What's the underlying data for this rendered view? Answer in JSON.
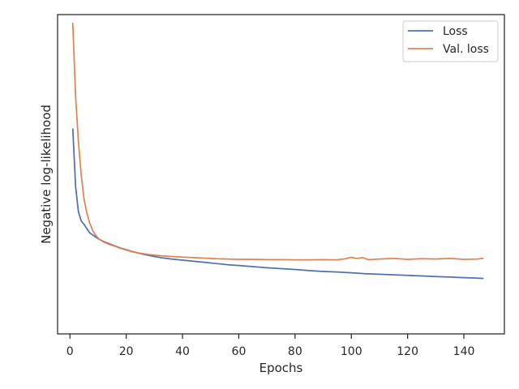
{
  "chart_data": {
    "type": "line",
    "title": "",
    "xlabel": "Epochs",
    "ylabel": "Negative log-likelihood",
    "xlim": [
      -4.4,
      154.4
    ],
    "ylim": [
      0.0,
      1.0
    ],
    "xticks": [
      0,
      20,
      40,
      60,
      80,
      100,
      120,
      140
    ],
    "yticks": [],
    "grid": false,
    "legend_position": "top-right",
    "series": [
      {
        "name": "Loss",
        "color": "#4c72b0",
        "x": [
          1,
          2,
          3,
          4,
          5,
          6,
          7,
          8,
          9,
          10,
          12,
          14,
          16,
          18,
          20,
          22,
          24,
          26,
          28,
          30,
          33,
          36,
          40,
          44,
          48,
          52,
          56,
          60,
          65,
          70,
          75,
          80,
          85,
          90,
          95,
          100,
          105,
          110,
          115,
          120,
          125,
          130,
          135,
          140,
          145,
          147
        ],
        "y": [
          0.625,
          0.42,
          0.33,
          0.297,
          0.285,
          0.27,
          0.255,
          0.248,
          0.241,
          0.234,
          0.224,
          0.216,
          0.208,
          0.201,
          0.195,
          0.189,
          0.184,
          0.179,
          0.175,
          0.171,
          0.166,
          0.162,
          0.158,
          0.154,
          0.15,
          0.146,
          0.142,
          0.139,
          0.135,
          0.131,
          0.128,
          0.125,
          0.121,
          0.118,
          0.116,
          0.113,
          0.11,
          0.108,
          0.106,
          0.104,
          0.102,
          0.1,
          0.098,
          0.096,
          0.094,
          0.093
        ]
      },
      {
        "name": "Val. loss",
        "color": "#dd8452",
        "x": [
          1,
          2,
          3,
          4,
          5,
          6,
          7,
          8,
          9,
          10,
          11,
          12,
          14,
          16,
          18,
          20,
          22,
          24,
          26,
          28,
          30,
          33,
          36,
          40,
          44,
          48,
          52,
          56,
          60,
          65,
          70,
          75,
          80,
          85,
          90,
          95,
          98,
          100,
          102,
          104,
          106,
          110,
          115,
          120,
          125,
          130,
          135,
          140,
          145,
          147
        ],
        "y": [
          1.0,
          0.74,
          0.58,
          0.46,
          0.375,
          0.325,
          0.29,
          0.265,
          0.248,
          0.236,
          0.228,
          0.222,
          0.214,
          0.207,
          0.2,
          0.194,
          0.188,
          0.184,
          0.181,
          0.178,
          0.176,
          0.173,
          0.171,
          0.169,
          0.167,
          0.165,
          0.163,
          0.162,
          0.161,
          0.161,
          0.16,
          0.16,
          0.159,
          0.159,
          0.16,
          0.159,
          0.163,
          0.168,
          0.164,
          0.167,
          0.16,
          0.162,
          0.164,
          0.161,
          0.163,
          0.162,
          0.164,
          0.161,
          0.162,
          0.165
        ]
      }
    ]
  }
}
